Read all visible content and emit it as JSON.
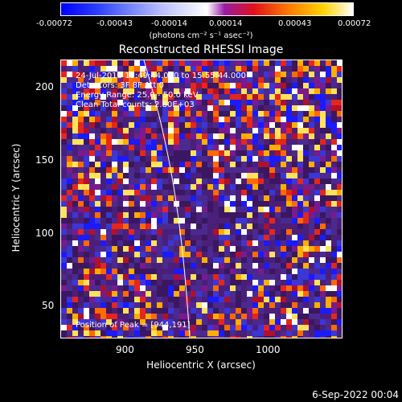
{
  "colorbar": {
    "ticks": [
      "-0.00072",
      "-0.00043",
      "-0.00014",
      "0.00014",
      "0.00043",
      "0.00072"
    ],
    "unit_label": "(photons cm⁻² s⁻¹ asec⁻²)"
  },
  "plot": {
    "title": "Reconstructed RHESSI Image",
    "xlabel": "Heliocentric X (arcsec)",
    "ylabel": "Heliocentric Y (arcsec)",
    "xticks": [
      "900",
      "950",
      "1000"
    ],
    "yticks": [
      "200",
      "150",
      "100",
      "50"
    ],
    "info": {
      "line1": "24-Jul-2018 15:49:44.000 to 15:55:44.000",
      "line2": "Detectors: 3F 8F  Att 0",
      "line3": "Energy Range: 25.0 - 50.0 keV",
      "line4": "Clean    Total counts: 2.80E+03",
      "peak": "Position of Peak = [944,191]"
    }
  },
  "footer": {
    "date": "6-Sep-2022 00:04"
  }
}
